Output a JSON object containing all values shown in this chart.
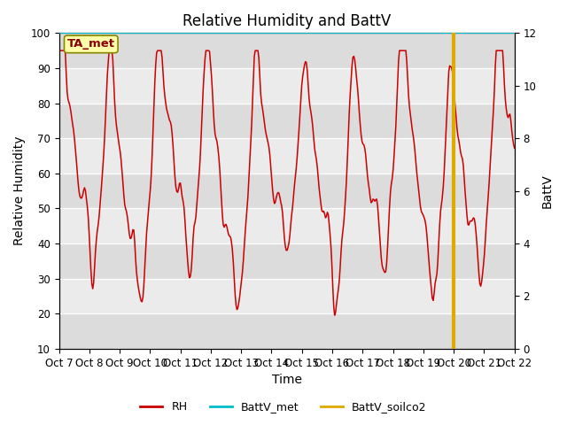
{
  "title": "Relative Humidity and BattV",
  "xlabel": "Time",
  "ylabel_left": "Relative Humidity",
  "ylabel_right": "BattV",
  "ylim_left": [
    10,
    100
  ],
  "ylim_right": [
    0,
    12
  ],
  "x_tick_labels": [
    "Oct 7",
    "Oct 8",
    "Oct 9",
    "Oct 10",
    "Oct 11",
    "Oct 12",
    "Oct 13",
    "Oct 14",
    "Oct 15",
    "Oct 16",
    "Oct 17",
    "Oct 18",
    "Oct 19",
    "Oct 20",
    "Oct 21",
    "Oct 22"
  ],
  "annotation_text": "TA_met",
  "rh_color": "#cc0000",
  "battv_met_color": "#00bbcc",
  "battv_soilco2_color": "#ddaa00",
  "background_color": "#ffffff",
  "plot_bg_dark": "#dcdcdc",
  "plot_bg_light": "#ebebeb",
  "grid_color": "#ffffff",
  "title_fontsize": 12,
  "axis_label_fontsize": 10,
  "tick_fontsize": 8.5,
  "legend_fontsize": 9,
  "soilco2_vline_x": 13.0,
  "rh_seed": 99,
  "n_points": 500,
  "xlim": [
    0,
    15
  ]
}
